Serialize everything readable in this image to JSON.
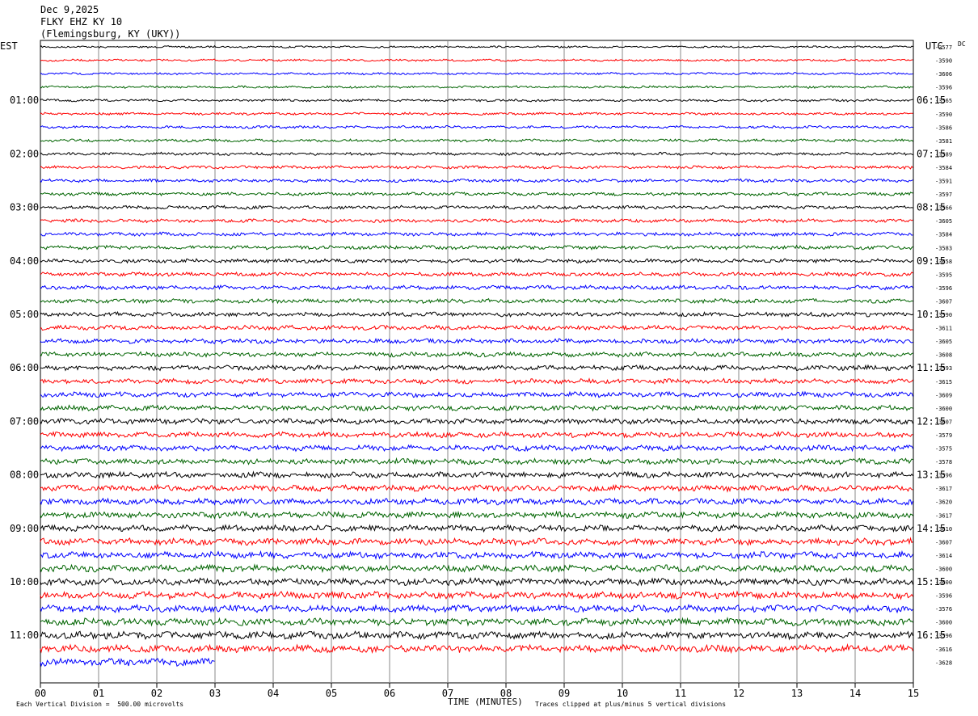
{
  "header": {
    "date": "Dec 9,2025",
    "station": "FLKY EHZ KY 10",
    "location": "(Flemingsburg, KY (UKY))"
  },
  "left_timezone": "EST",
  "right_timezone": "UTC",
  "top_right_label": "DC",
  "chart_data": {
    "type": "helicorder",
    "minutes_per_line": 15,
    "lines_per_hour": 4,
    "trace_colors": [
      "#000000",
      "#ff0000",
      "#0000ff",
      "#006400"
    ],
    "x_ticks": [
      "00",
      "01",
      "02",
      "03",
      "04",
      "05",
      "06",
      "07",
      "08",
      "09",
      "10",
      "11",
      "12",
      "13",
      "14",
      "15"
    ],
    "xlabel": "TIME (MINUTES)",
    "left_hour_labels": [
      "01:00",
      "02:00",
      "03:00",
      "04:00",
      "05:00",
      "06:00",
      "07:00",
      "08:00",
      "09:00",
      "10:00",
      "11:00"
    ],
    "right_hour_labels": [
      "06:15",
      "07:15",
      "08:15",
      "09:15",
      "10:15",
      "11:15",
      "12:15",
      "13:15",
      "14:15",
      "15:15",
      "16:15"
    ],
    "last_line_fraction": 0.2,
    "trace_offsets": [
      "-3577",
      "-3590",
      "-3606",
      "-3596",
      "-3565",
      "-3590",
      "-3586",
      "-3581",
      "-3589",
      "-3584",
      "-3591",
      "-3597",
      "-3566",
      "-3605",
      "-3584",
      "-3583",
      "-3658",
      "-3595",
      "-3596",
      "-3607",
      "-3590",
      "-3611",
      "-3605",
      "-3608",
      "-3593",
      "-3615",
      "-3609",
      "-3600",
      "-3607",
      "-3579",
      "-3575",
      "-3578",
      "-3596",
      "-3617",
      "-3620",
      "-3617",
      "-3610",
      "-3607",
      "-3614",
      "-3600",
      "-3600",
      "-3596",
      "-3576",
      "-3600",
      "-3596",
      "-3616",
      "-3628"
    ]
  },
  "footer": {
    "scale_note": "Each Vertical Division =  500.00 microvolts",
    "clip_note": "Traces clipped at plus/minus 5 vertical divisions"
  }
}
